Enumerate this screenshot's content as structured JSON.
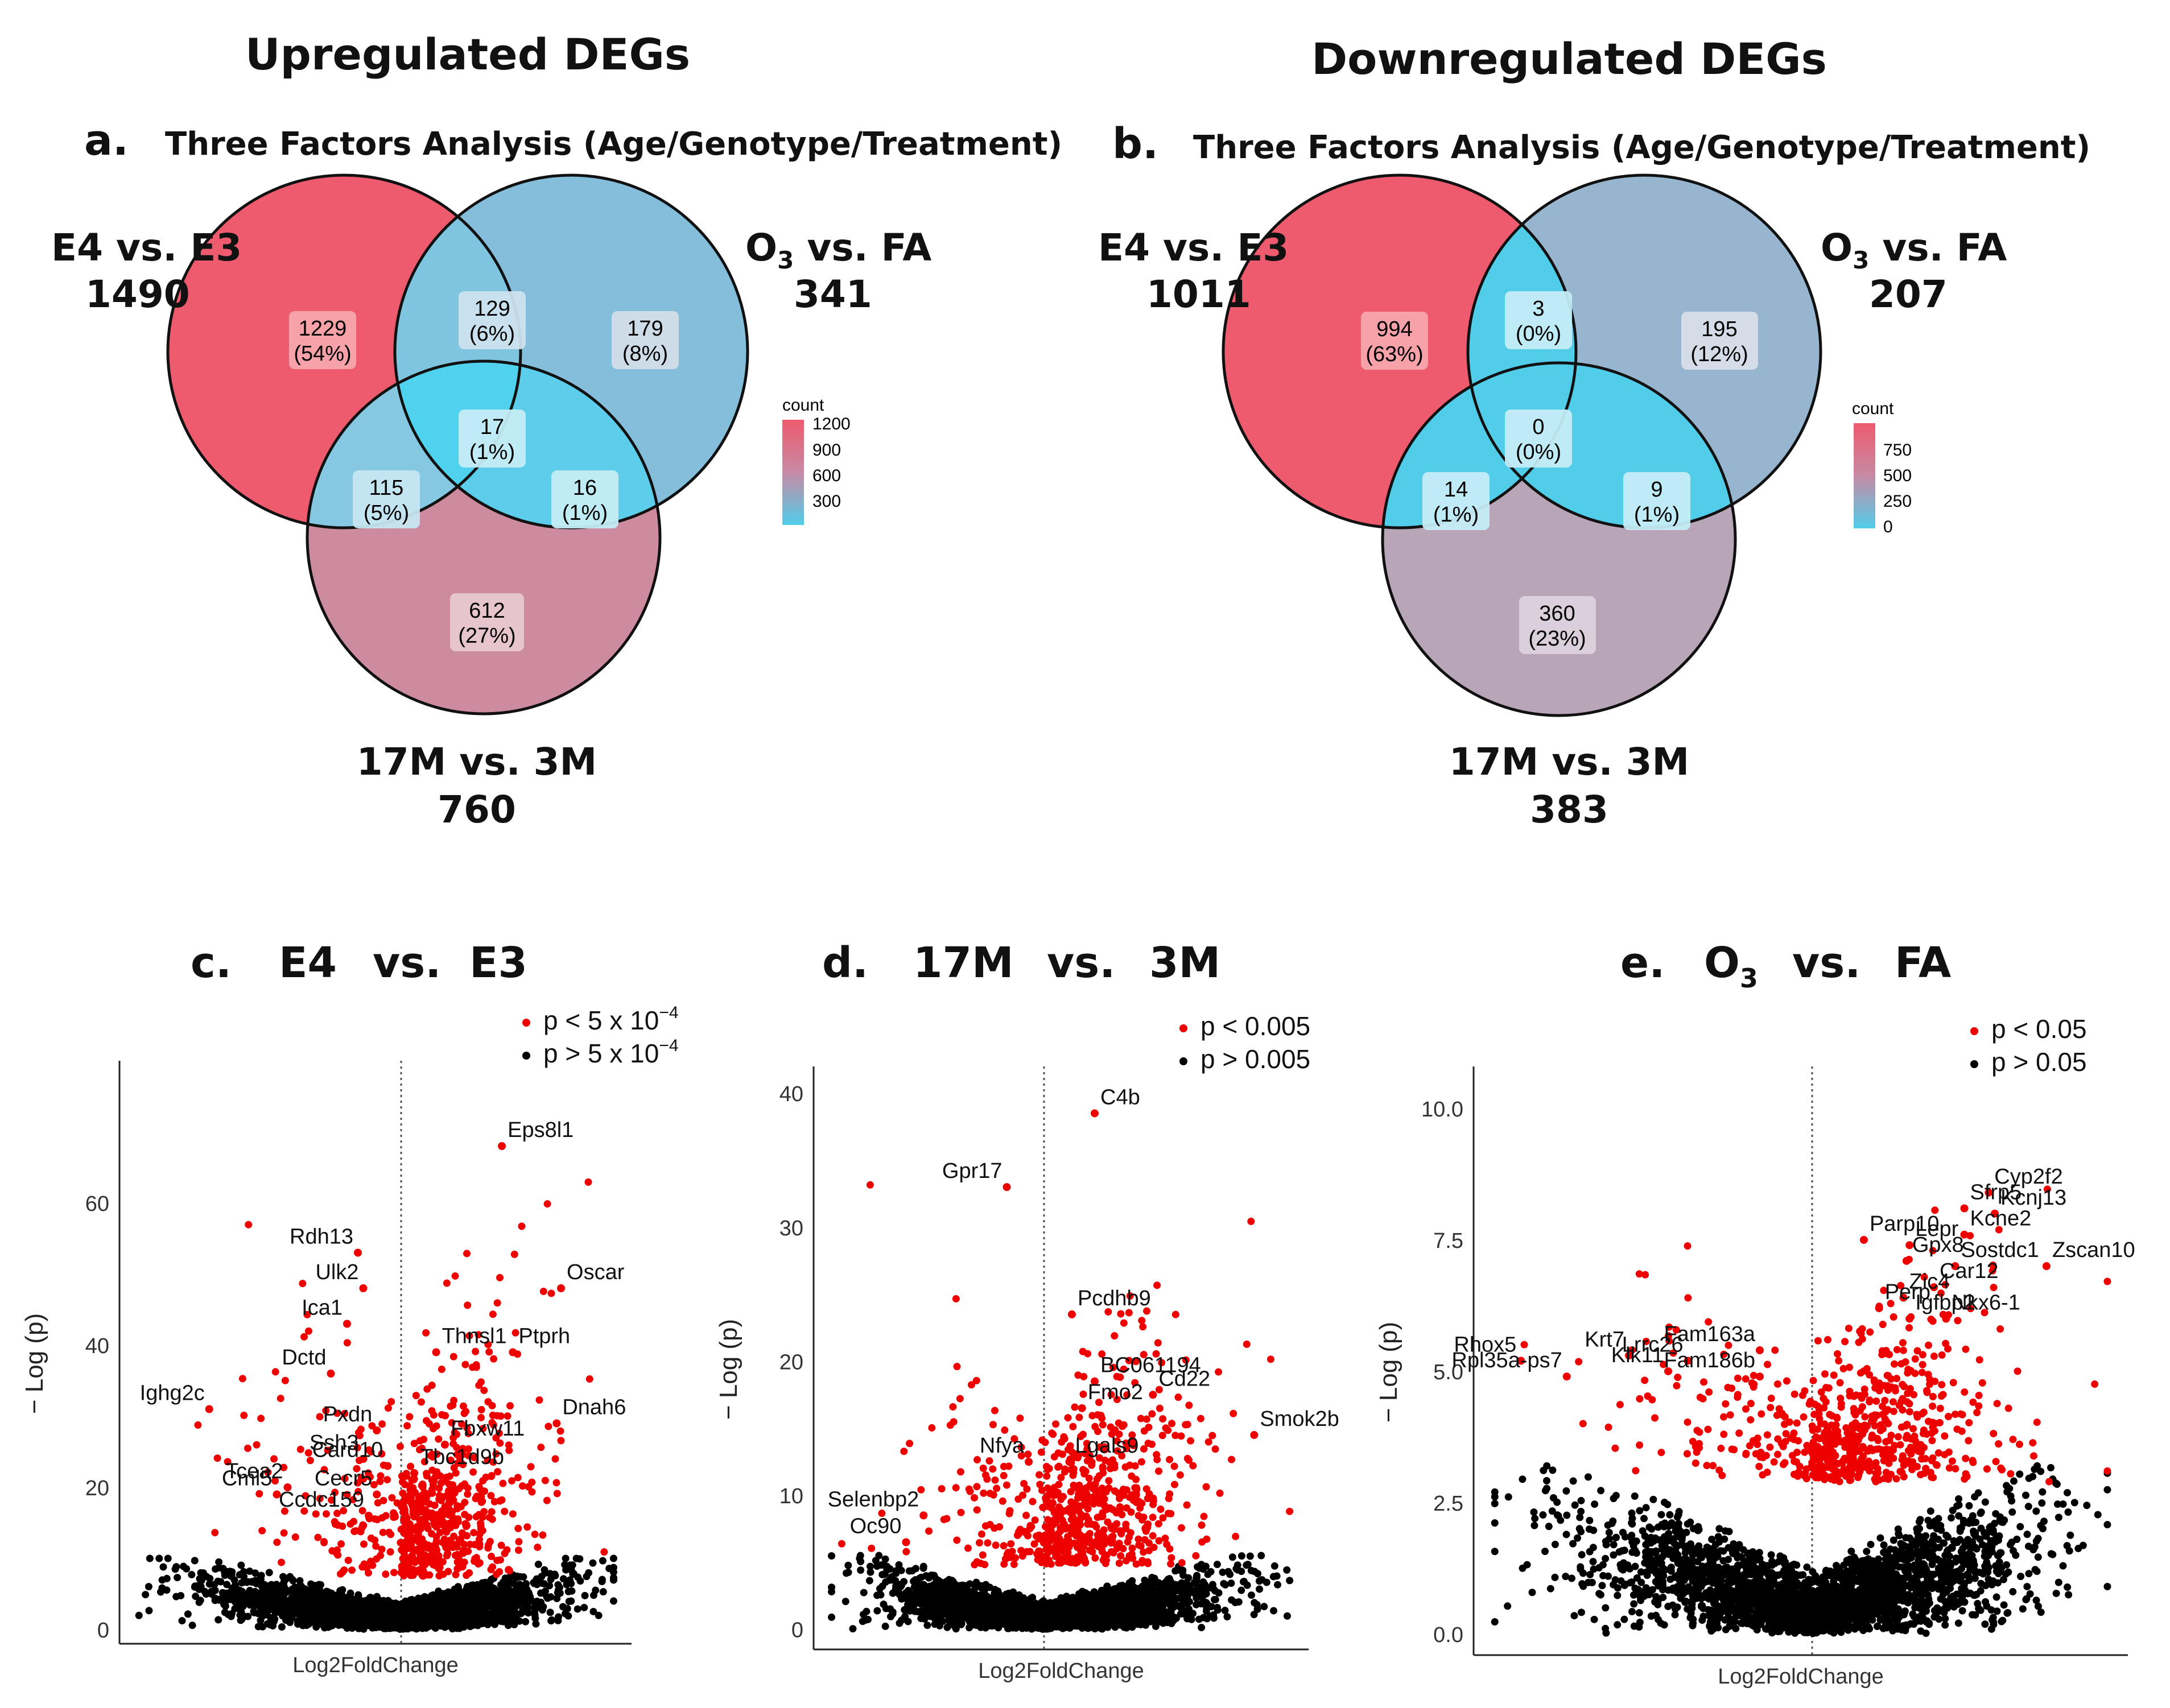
{
  "headers": {
    "up": "Upregulated DEGs",
    "down": "Downregulated DEGs"
  },
  "colors": {
    "red": "#ee0000",
    "black": "#000000",
    "e4": "#ee5b6e",
    "o3": "#7fbedb",
    "age": "#cc8b9f",
    "o3_down": "#98b5d0",
    "age_down": "#b8a5b7",
    "cyan": "#52cde9"
  },
  "chart_data": [
    {
      "id": "a",
      "type": "venn",
      "panel_letter": "a.",
      "title": "Three Factors Analysis (Age/Genotype/Treatment)",
      "sets": [
        {
          "key": "e4",
          "label": "E4 vs. E3",
          "total": "1490"
        },
        {
          "key": "o3",
          "label_main": "O",
          "label_sub": "3",
          "label_rest": " vs. FA",
          "total": "341"
        },
        {
          "key": "age",
          "label": "17M vs. 3M",
          "total": "760"
        }
      ],
      "regions": [
        {
          "key": "e4_only",
          "count": "1229",
          "pct": "(54%)"
        },
        {
          "key": "e4_o3",
          "count": "129",
          "pct": "(6%)"
        },
        {
          "key": "o3_only",
          "count": "179",
          "pct": "(8%)"
        },
        {
          "key": "all",
          "count": "17",
          "pct": "(1%)"
        },
        {
          "key": "e4_age",
          "count": "115",
          "pct": "(5%)"
        },
        {
          "key": "o3_age",
          "count": "16",
          "pct": "(1%)"
        },
        {
          "key": "age_only",
          "count": "612",
          "pct": "(27%)"
        }
      ],
      "legend": {
        "title": "count",
        "ticks": [
          "1200",
          "900",
          "600",
          "300"
        ]
      }
    },
    {
      "id": "b",
      "type": "venn",
      "panel_letter": "b.",
      "title": "Three Factors Analysis (Age/Genotype/Treatment)",
      "sets": [
        {
          "key": "e4",
          "label": "E4 vs. E3",
          "total": "1011"
        },
        {
          "key": "o3",
          "label_main": "O",
          "label_sub": "3",
          "label_rest": " vs. FA",
          "total": "207"
        },
        {
          "key": "age",
          "label": "17M vs. 3M",
          "total": "383"
        }
      ],
      "regions": [
        {
          "key": "e4_only",
          "count": "994",
          "pct": "(63%)"
        },
        {
          "key": "e4_o3",
          "count": "3",
          "pct": "(0%)"
        },
        {
          "key": "o3_only",
          "count": "195",
          "pct": "(12%)"
        },
        {
          "key": "all",
          "count": "0",
          "pct": "(0%)"
        },
        {
          "key": "e4_age",
          "count": "14",
          "pct": "(1%)"
        },
        {
          "key": "o3_age",
          "count": "9",
          "pct": "(1%)"
        },
        {
          "key": "age_only",
          "count": "360",
          "pct": "(23%)"
        }
      ],
      "legend": {
        "title": "count",
        "ticks": [
          "750",
          "500",
          "250",
          "0"
        ]
      }
    },
    {
      "id": "c",
      "type": "scatter",
      "subtype": "volcano",
      "panel_letter": "c.",
      "title_parts": [
        "E4",
        "vs.",
        "E3"
      ],
      "xlabel": "Log2FoldChange",
      "ylabel": "− Log (p)",
      "ylim": [
        -2,
        80
      ],
      "xlim": [
        -1,
        1
      ],
      "yticks": [
        0,
        20,
        40,
        60
      ],
      "legend": [
        "p < 5 x 10",
        "p > 5 x 10"
      ],
      "legend_exp": "−4",
      "genes": [
        {
          "name": "Eps8l1",
          "x": 0.46,
          "y": 68
        },
        {
          "name": "Rdh13",
          "x": -0.16,
          "y": 53
        },
        {
          "name": "Ulk2",
          "x": -0.14,
          "y": 48
        },
        {
          "name": "Ica1",
          "x": -0.2,
          "y": 43
        },
        {
          "name": "Oscar",
          "x": 0.73,
          "y": 48
        },
        {
          "name": "Ptprh",
          "x": 0.51,
          "y": 39
        },
        {
          "name": "Thnsl1",
          "x": 0.16,
          "y": 39
        },
        {
          "name": "Dctd",
          "x": -0.26,
          "y": 36
        },
        {
          "name": "Ighg2c",
          "x": -0.71,
          "y": 31
        },
        {
          "name": "Pxdn",
          "x": -0.09,
          "y": 28
        },
        {
          "name": "Fbxw11",
          "x": 0.2,
          "y": 26
        },
        {
          "name": "Dnah6",
          "x": 0.71,
          "y": 29
        },
        {
          "name": "Ssh3",
          "x": -0.14,
          "y": 24
        },
        {
          "name": "Card10",
          "x": -0.05,
          "y": 23
        },
        {
          "name": "Tcea2",
          "x": -0.42,
          "y": 20
        },
        {
          "name": "Tbc1d9b",
          "x": 0.06,
          "y": 22
        },
        {
          "name": "Cml5",
          "x": -0.46,
          "y": 19
        },
        {
          "name": "Cecr5",
          "x": -0.09,
          "y": 19
        },
        {
          "name": "Ccdc159",
          "x": -0.12,
          "y": 16
        }
      ]
    },
    {
      "id": "d",
      "type": "scatter",
      "subtype": "volcano",
      "panel_letter": "d.",
      "title_parts": [
        "17M",
        "vs.",
        "3M"
      ],
      "xlabel": "Log2FoldChange",
      "ylabel": "− Log (p)",
      "ylim": [
        -1.5,
        42
      ],
      "xlim": [
        -1,
        1
      ],
      "yticks": [
        0,
        10,
        20,
        30,
        40
      ],
      "legend": [
        "p < 0.005",
        "p > 0.005"
      ],
      "genes": [
        {
          "name": "C4b",
          "x": 0.2,
          "y": 38.5
        },
        {
          "name": "Gpr17",
          "x": -0.17,
          "y": 33
        },
        {
          "name": "Pcdhb9",
          "x": 0.11,
          "y": 23.5
        },
        {
          "name": "BC061194",
          "x": 0.2,
          "y": 18.5
        },
        {
          "name": "Cd22",
          "x": 0.43,
          "y": 17.5
        },
        {
          "name": "Fmo2",
          "x": 0.15,
          "y": 16.5
        },
        {
          "name": "Smok2b",
          "x": 0.83,
          "y": 14.5
        },
        {
          "name": "Nfya",
          "x": -0.07,
          "y": 12.5
        },
        {
          "name": "Lgals9",
          "x": 0.1,
          "y": 12.5
        },
        {
          "name": "Selenbp2",
          "x": -0.55,
          "y": 8.5
        },
        {
          "name": "Oc90",
          "x": -0.63,
          "y": 6.5
        }
      ]
    },
    {
      "id": "e",
      "type": "scatter",
      "subtype": "volcano",
      "panel_letter": "e.",
      "title_parts": [
        "O",
        "3",
        "vs.",
        "FA"
      ],
      "xlabel": "Log2FoldChange",
      "ylabel": "− Log (p)",
      "ylim": [
        -0.4,
        10.8
      ],
      "xlim": [
        -1,
        1
      ],
      "yticks": [
        0.0,
        2.5,
        5.0,
        7.5,
        10.0
      ],
      "ytick_labels": [
        "0.0",
        "2.5",
        "5.0",
        "7.5",
        "10.0"
      ],
      "legend": [
        "p < 0.05",
        "p > 0.05"
      ],
      "genes": [
        {
          "name": "Cyp2f2",
          "x": 0.58,
          "y": 8.4
        },
        {
          "name": "Sfrp5",
          "x": 0.5,
          "y": 8.1
        },
        {
          "name": "Kcnj13",
          "x": 0.6,
          "y": 8.0
        },
        {
          "name": "Kcne2",
          "x": 0.5,
          "y": 7.6
        },
        {
          "name": "Parp10",
          "x": 0.17,
          "y": 7.5
        },
        {
          "name": "Lepr",
          "x": 0.32,
          "y": 7.4
        },
        {
          "name": "Gpx8",
          "x": 0.31,
          "y": 7.1
        },
        {
          "name": "Sostdc1",
          "x": 0.47,
          "y": 7.0
        },
        {
          "name": "Car12",
          "x": 0.4,
          "y": 6.6
        },
        {
          "name": "Zic4",
          "x": 0.3,
          "y": 6.4
        },
        {
          "name": "Zscan10",
          "x": 0.77,
          "y": 7.0
        },
        {
          "name": "Perp",
          "x": 0.22,
          "y": 6.2
        },
        {
          "name": "Igfbp2",
          "x": 0.32,
          "y": 6.0
        },
        {
          "name": "Nkx6-1",
          "x": 0.44,
          "y": 6.0
        },
        {
          "name": "Rhox5",
          "x": -0.89,
          "y": 5.2
        },
        {
          "name": "Krt7",
          "x": -0.56,
          "y": 5.3
        },
        {
          "name": "Lrrc26",
          "x": -0.38,
          "y": 5.2
        },
        {
          "name": "Fam163a",
          "x": -0.16,
          "y": 5.4
        },
        {
          "name": "Rpl35a-ps7",
          "x": -0.75,
          "y": 4.9
        },
        {
          "name": "Klk11",
          "x": -0.44,
          "y": 5.0
        },
        {
          "name": "Fam186b",
          "x": -0.16,
          "y": 4.9
        }
      ]
    }
  ]
}
